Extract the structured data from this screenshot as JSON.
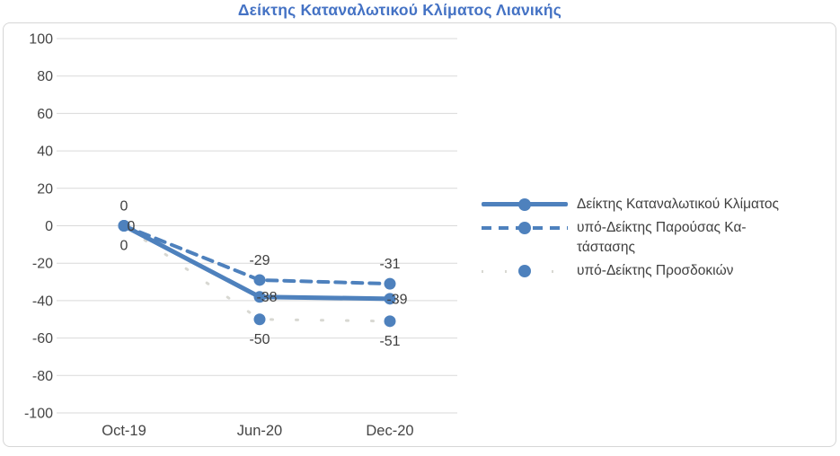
{
  "chart_data": {
    "type": "line",
    "title": "Δείκτης Καταναλωτικού Κλίματος Λιανικής",
    "categories": [
      "Oct-19",
      "Jun-20",
      "Dec-20"
    ],
    "series": [
      {
        "name": "Δείκτης Καταναλωτικού Κλίματος",
        "legend_label": "Δείκτης Καταναλωτικού Κλίματος",
        "values": [
          0,
          -38,
          -39
        ],
        "style": "solid",
        "label_position": "center"
      },
      {
        "name": "υπό-Δείκτης Παρούσας Κατάστασης",
        "legend_label": "υπό-Δείκτης Παρούσας Κα-\nτάστασης",
        "values": [
          0,
          -29,
          -31
        ],
        "style": "dashed",
        "label_position": "above"
      },
      {
        "name": "υπό-Δείκτης Προσδοκιών",
        "legend_label": "υπό-Δείκτης Προσδοκιών",
        "values": [
          0,
          -50,
          -51
        ],
        "style": "dotted-faint",
        "label_position": "below"
      }
    ],
    "y_ticks": [
      100,
      80,
      60,
      40,
      20,
      0,
      -20,
      -40,
      -60,
      -80,
      -100
    ],
    "ylim": [
      -100,
      100
    ],
    "grid": true,
    "legend_position": "right",
    "marker": "circle",
    "colors": {
      "series": "#4E81BD",
      "title": "#4472C4",
      "axis_text": "#454545",
      "label_text": "#3F3F3F",
      "gridline": "#D9D9D9",
      "border": "#D6D6D6",
      "faint_line": "#D8D8D2"
    }
  }
}
